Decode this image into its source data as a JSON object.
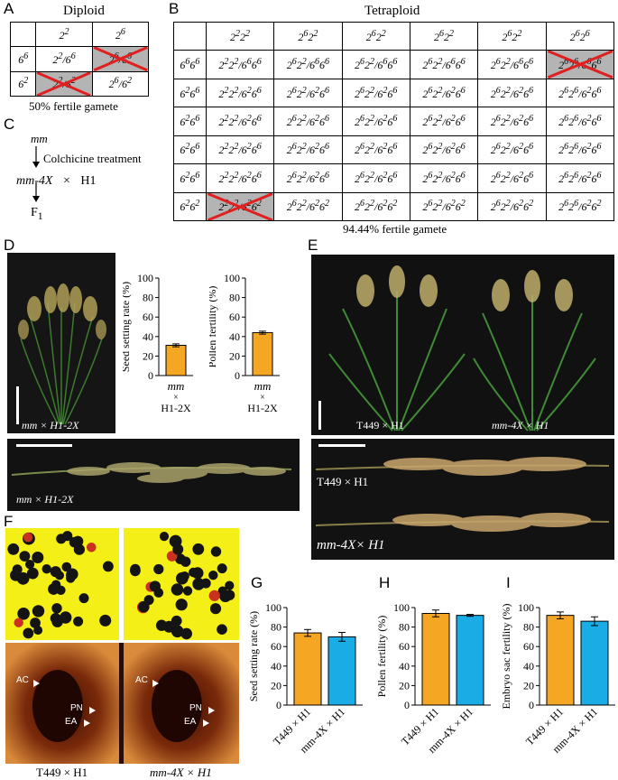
{
  "panel_labels": {
    "A": "A",
    "B": "B",
    "C": "C",
    "D": "D",
    "E": "E",
    "F": "F",
    "G": "G",
    "H": "H",
    "I": "I"
  },
  "panelA": {
    "title": "Diploid",
    "rows": [
      [
        "",
        "2<sup>2</sup>",
        "2<sup>6</sup>"
      ],
      [
        "6<sup>6</sup>",
        "2<sup>2</sup>/6<sup>6</sup>",
        "2<sup>6</sup>/6<sup>6</sup>"
      ],
      [
        "6<sup>2</sup>",
        "2<sup>2</sup>/6<sup>2</sup>",
        "2<sup>6</sup>/6<sup>2</sup>"
      ]
    ],
    "sterile_cells": [
      [
        1,
        2
      ],
      [
        2,
        1
      ]
    ],
    "caption": "50% fertile gamete"
  },
  "panelB": {
    "title": "Tetraploid",
    "col_headers": [
      "2<sup>2</sup>2<sup>2</sup>",
      "2<sup>6</sup>2<sup>2</sup>",
      "2<sup>6</sup>2<sup>2</sup>",
      "2<sup>6</sup>2<sup>2</sup>",
      "2<sup>6</sup>2<sup>2</sup>",
      "2<sup>6</sup>2<sup>6</sup>"
    ],
    "row_headers": [
      "6<sup>6</sup>6<sup>6</sup>",
      "6<sup>2</sup>6<sup>6</sup>",
      "6<sup>2</sup>6<sup>6</sup>",
      "6<sup>2</sup>6<sup>6</sup>",
      "6<sup>2</sup>6<sup>6</sup>",
      "6<sup>2</sup>6<sup>2</sup>"
    ],
    "sterile_cells": [
      [
        0,
        5
      ],
      [
        5,
        0
      ]
    ],
    "caption": "94.44% fertile gamete"
  },
  "panelC": {
    "line1": "mm",
    "treatment": "Colchicine treatment",
    "cross_left": "mm-4X",
    "times": "×",
    "cross_right": "H1",
    "result": "F<sub>1</sub>"
  },
  "panelD": {
    "photo_label": "mm × H1-2X",
    "panicle_label": "mm × H1-2X"
  },
  "panelE": {
    "plant_left": "T449 × H1",
    "plant_right": "mm-4X × H1",
    "panicle_top": "T449 × H1",
    "panicle_bottom": "mm-4X× H1"
  },
  "panelF": {
    "embryo_labels": {
      "ac": "AC",
      "pn": "PN",
      "ea": "EA"
    },
    "caption_left": "T449 × H1",
    "caption_right": "mm-4X × H1"
  },
  "colors": {
    "orange": "#F5A623",
    "blue": "#1AADE5"
  },
  "chart_data": [
    {
      "id": "D1",
      "type": "bar",
      "ylabel": "Seed setting rate (%)",
      "ylim": [
        0,
        100
      ],
      "ticks": [
        0,
        20,
        40,
        60,
        80,
        100
      ],
      "categories": [
        "mm × H1-2X"
      ],
      "values": [
        31
      ],
      "errors": [
        1.5
      ],
      "colors": [
        "#F5A623"
      ]
    },
    {
      "id": "D2",
      "type": "bar",
      "ylabel": "Pollen fertility (%)",
      "ylim": [
        0,
        100
      ],
      "ticks": [
        0,
        20,
        40,
        60,
        80,
        100
      ],
      "categories": [
        "mm × H1-2X"
      ],
      "values": [
        44
      ],
      "errors": [
        1.5
      ],
      "colors": [
        "#F5A623"
      ]
    },
    {
      "id": "G",
      "type": "bar",
      "ylabel": "Seed setting rate (%)",
      "ylim": [
        0,
        100
      ],
      "ticks": [
        0,
        20,
        40,
        60,
        80,
        100
      ],
      "categories": [
        "T449 × H1",
        "mm-4X × H1"
      ],
      "values": [
        74,
        70
      ],
      "errors": [
        3.5,
        4.5
      ],
      "colors": [
        "#F5A623",
        "#1AADE5"
      ]
    },
    {
      "id": "H",
      "type": "bar",
      "ylabel": "Pollen fertility (%)",
      "ylim": [
        0,
        100
      ],
      "ticks": [
        0,
        20,
        40,
        60,
        80,
        100
      ],
      "categories": [
        "T449 × H1",
        "mm-4X × H1"
      ],
      "values": [
        94,
        92
      ],
      "errors": [
        3.5,
        1
      ],
      "colors": [
        "#F5A623",
        "#1AADE5"
      ]
    },
    {
      "id": "I",
      "type": "bar",
      "ylabel": "Embryo sac fertility (%)",
      "ylim": [
        0,
        100
      ],
      "ticks": [
        0,
        20,
        40,
        60,
        80,
        100
      ],
      "categories": [
        "T449 × H1",
        "mm-4X × H1"
      ],
      "values": [
        92,
        86
      ],
      "errors": [
        3.5,
        4.5
      ],
      "colors": [
        "#F5A623",
        "#1AADE5"
      ]
    }
  ]
}
